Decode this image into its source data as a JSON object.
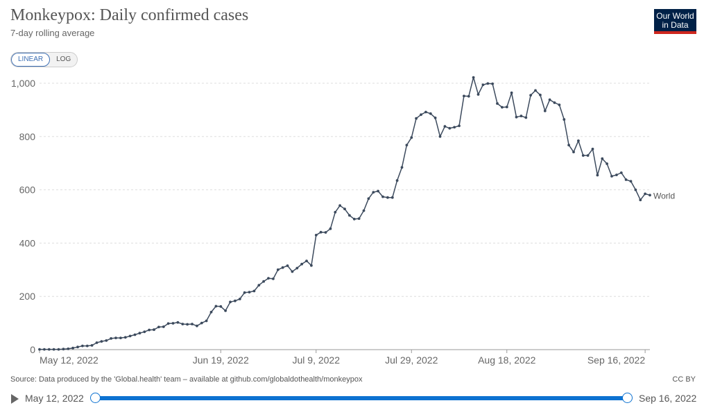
{
  "header": {
    "title": "Monkeypox: Daily confirmed cases",
    "subtitle": "7-day rolling average"
  },
  "logo": {
    "line1": "Our World",
    "line2": "in Data"
  },
  "scale_toggle": {
    "linear_label": "LINEAR",
    "log_label": "LOG",
    "selected": "LINEAR"
  },
  "footer": {
    "source": "Source: Data produced by the 'Global.health' team – available at github.com/globaldothealth/monkeypox",
    "license": "CC BY"
  },
  "timeline": {
    "start_label": "May 12, 2022",
    "end_label": "Sep 16, 2022"
  },
  "colors": {
    "series": "#3c4a5d",
    "grid": "#dddddd",
    "accent": "#0d72d1",
    "logo_bg": "#002147",
    "logo_bar": "#ce261e"
  },
  "chart_data": {
    "type": "line",
    "title": "Monkeypox: Daily confirmed cases",
    "subtitle": "7-day rolling average",
    "x_start": "May 12, 2022",
    "x_end": "Sep 16, 2022",
    "x_tick_labels": [
      "May 12, 2022",
      "Jun 19, 2022",
      "Jul 9, 2022",
      "Jul 29, 2022",
      "Aug 18, 2022",
      "Sep 16, 2022"
    ],
    "y_ticks": [
      0,
      200,
      400,
      600,
      800,
      1000
    ],
    "y_tick_labels": [
      "0",
      "200",
      "400",
      "600",
      "800",
      "1,000"
    ],
    "ylim": [
      0,
      1000
    ],
    "grid": true,
    "series": [
      {
        "name": "World",
        "values": [
          1,
          1,
          1,
          1,
          1,
          2,
          3,
          6,
          10,
          14,
          14,
          16,
          26,
          31,
          34,
          42,
          44,
          44,
          46,
          51,
          56,
          62,
          67,
          74,
          75,
          85,
          86,
          98,
          99,
          102,
          96,
          95,
          96,
          89,
          100,
          108,
          141,
          163,
          162,
          146,
          179,
          183,
          190,
          214,
          216,
          220,
          242,
          256,
          268,
          266,
          300,
          308,
          315,
          293,
          306,
          321,
          333,
          316,
          430,
          441,
          440,
          454,
          516,
          541,
          528,
          504,
          490,
          492,
          522,
          567,
          591,
          595,
          574,
          571,
          571,
          635,
          684,
          768,
          796,
          868,
          882,
          892,
          886,
          870,
          800,
          838,
          831,
          835,
          840,
          952,
          951,
          1022,
          958,
          994,
          999,
          998,
          924,
          910,
          911,
          964,
          873,
          877,
          871,
          955,
          973,
          956,
          896,
          938,
          927,
          919,
          864,
          768,
          742,
          784,
          729,
          729,
          753,
          655,
          717,
          698,
          651,
          656,
          664,
          638,
          632,
          600,
          562,
          585,
          580
        ]
      }
    ]
  }
}
